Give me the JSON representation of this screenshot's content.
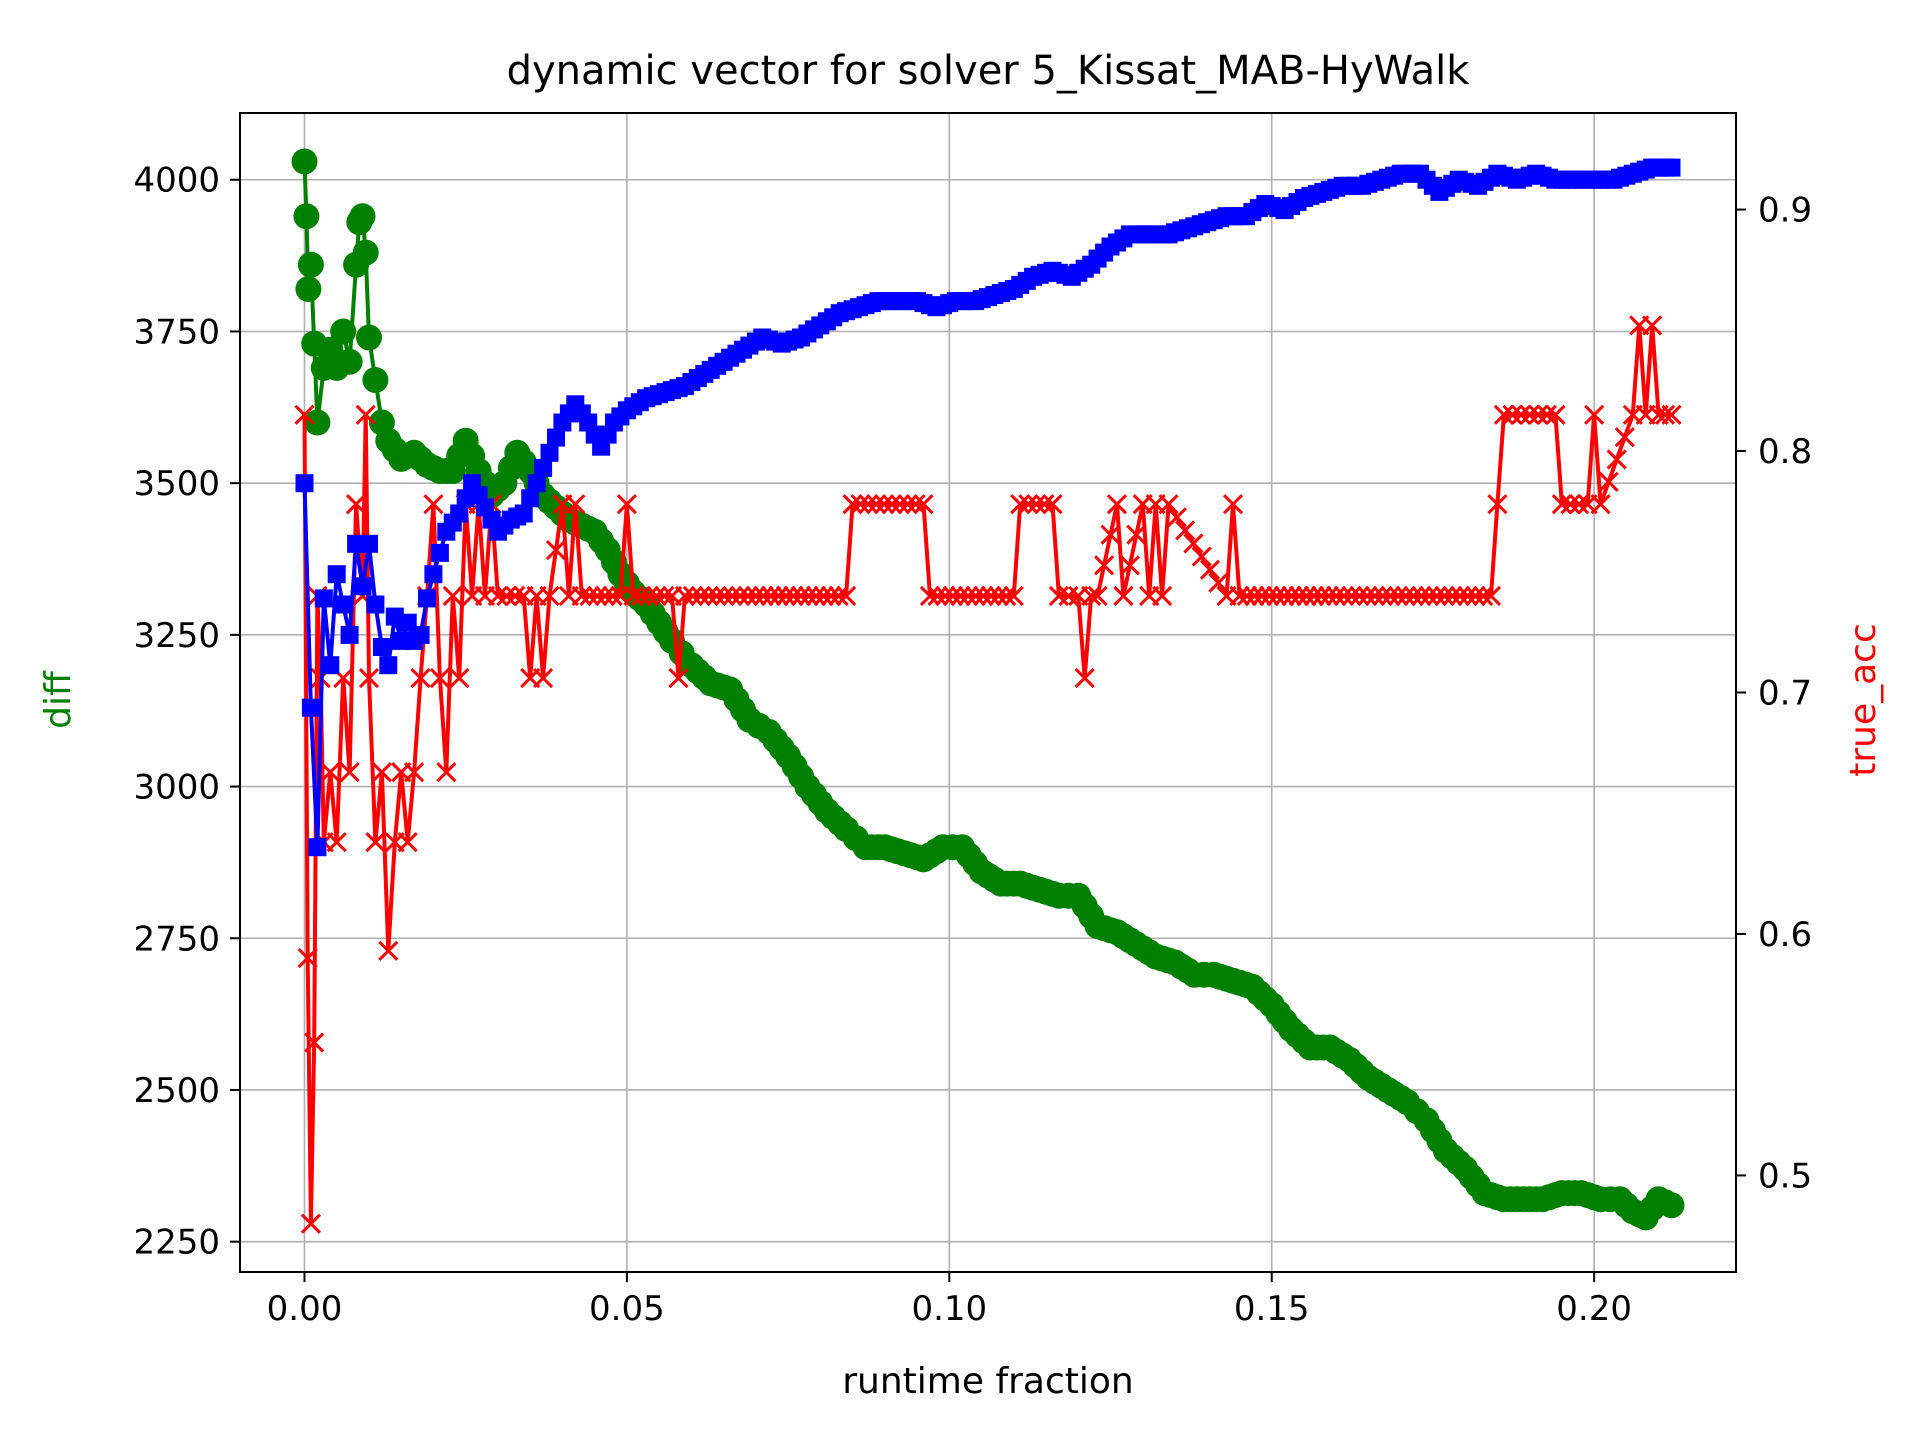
{
  "chart_data": {
    "type": "line",
    "title": "dynamic vector for solver 5_Kissat_MAB-HyWalk",
    "xlabel": "runtime fraction",
    "ylabel_left": "diff",
    "ylabel_right": "true_acc",
    "xlim": [
      -0.01,
      0.222
    ],
    "ylim_left": [
      2200,
      4110
    ],
    "ylim_right": [
      0.46,
      0.94
    ],
    "xticks": [
      0.0,
      0.05,
      0.1,
      0.15,
      0.2
    ],
    "xtick_labels": [
      "0.00",
      "0.05",
      "0.10",
      "0.15",
      "0.20"
    ],
    "yticks_left": [
      2250,
      2500,
      2750,
      3000,
      3250,
      3500,
      3750,
      4000
    ],
    "yticks_left_labels": [
      "2250",
      "2500",
      "2750",
      "3000",
      "3250",
      "3500",
      "3750",
      "4000"
    ],
    "yticks_right": [
      0.5,
      0.6,
      0.7,
      0.8,
      0.9
    ],
    "yticks_right_labels": [
      "0.5",
      "0.6",
      "0.7",
      "0.8",
      "0.9"
    ],
    "grid": true,
    "colors": {
      "diff": "#008000",
      "true_acc": "#ff0000",
      "blue_series": "#0000ff",
      "left_label": "#008000",
      "right_label": "#ff0000",
      "grid": "#b0b0b0"
    },
    "series": [
      {
        "axis": "left",
        "marker": "circle",
        "color": "#008000",
        "x": [
          0.0,
          0.0003,
          0.0006,
          0.001,
          0.0015,
          0.002,
          0.003,
          0.004,
          0.005,
          0.006,
          0.007,
          0.008,
          0.0085,
          0.009,
          0.0095,
          0.01,
          0.011,
          0.012,
          0.013,
          0.015,
          0.017,
          0.019,
          0.021,
          0.023,
          0.025,
          0.027,
          0.029,
          0.031,
          0.033,
          0.035,
          0.037,
          0.039,
          0.041,
          0.043,
          0.045,
          0.047,
          0.049,
          0.051,
          0.053,
          0.055,
          0.057,
          0.06,
          0.063,
          0.066,
          0.069,
          0.072,
          0.075,
          0.078,
          0.081,
          0.084,
          0.087,
          0.09,
          0.093,
          0.096,
          0.099,
          0.102,
          0.105,
          0.108,
          0.111,
          0.114,
          0.117,
          0.12,
          0.123,
          0.126,
          0.129,
          0.132,
          0.135,
          0.138,
          0.141,
          0.144,
          0.147,
          0.15,
          0.153,
          0.156,
          0.159,
          0.162,
          0.165,
          0.168,
          0.171,
          0.174,
          0.177,
          0.18,
          0.183,
          0.186,
          0.189,
          0.192,
          0.195,
          0.198,
          0.201,
          0.204,
          0.206,
          0.208,
          0.21,
          0.212
        ],
        "values": [
          4030,
          3940,
          3820,
          3860,
          3730,
          3600,
          3690,
          3720,
          3690,
          3750,
          3700,
          3860,
          3930,
          3940,
          3880,
          3740,
          3670,
          3600,
          3570,
          3540,
          3550,
          3530,
          3520,
          3520,
          3570,
          3520,
          3480,
          3500,
          3550,
          3520,
          3480,
          3460,
          3440,
          3430,
          3420,
          3390,
          3350,
          3320,
          3300,
          3270,
          3240,
          3200,
          3170,
          3160,
          3110,
          3090,
          3050,
          3000,
          2960,
          2930,
          2900,
          2900,
          2890,
          2880,
          2900,
          2900,
          2860,
          2840,
          2840,
          2830,
          2820,
          2820,
          2770,
          2760,
          2740,
          2720,
          2710,
          2690,
          2690,
          2680,
          2670,
          2640,
          2600,
          2570,
          2570,
          2550,
          2520,
          2500,
          2480,
          2450,
          2400,
          2370,
          2330,
          2320,
          2320,
          2320,
          2330,
          2330,
          2320,
          2320,
          2300,
          2290,
          2320,
          2310
        ]
      },
      {
        "axis": "right",
        "marker": "x",
        "color": "#ff0000",
        "x": [
          0.0,
          0.0005,
          0.001,
          0.0015,
          0.002,
          0.0025,
          0.003,
          0.004,
          0.005,
          0.006,
          0.007,
          0.008,
          0.009,
          0.0095,
          0.01,
          0.011,
          0.012,
          0.013,
          0.014,
          0.015,
          0.016,
          0.017,
          0.018,
          0.019,
          0.02,
          0.021,
          0.022,
          0.023,
          0.024,
          0.025,
          0.026,
          0.027,
          0.028,
          0.029,
          0.03,
          0.034,
          0.035,
          0.036,
          0.037,
          0.038,
          0.04,
          0.041,
          0.042,
          0.043,
          0.049,
          0.05,
          0.051,
          0.057,
          0.058,
          0.059,
          0.07,
          0.084,
          0.085,
          0.096,
          0.097,
          0.11,
          0.111,
          0.116,
          0.117,
          0.12,
          0.121,
          0.122,
          0.123,
          0.126,
          0.127,
          0.13,
          0.131,
          0.132,
          0.133,
          0.134,
          0.143,
          0.144,
          0.145,
          0.16,
          0.184,
          0.185,
          0.186,
          0.19,
          0.194,
          0.195,
          0.199,
          0.2,
          0.201,
          0.206,
          0.207,
          0.208,
          0.209,
          0.21,
          0.212
        ],
        "values": [
          0.815,
          0.59,
          0.48,
          0.555,
          0.74,
          0.706,
          0.638,
          0.667,
          0.638,
          0.706,
          0.667,
          0.778,
          0.74,
          0.815,
          0.706,
          0.638,
          0.667,
          0.593,
          0.638,
          0.667,
          0.638,
          0.667,
          0.706,
          0.74,
          0.778,
          0.706,
          0.667,
          0.74,
          0.706,
          0.778,
          0.74,
          0.778,
          0.74,
          0.778,
          0.74,
          0.74,
          0.706,
          0.74,
          0.706,
          0.74,
          0.778,
          0.74,
          0.778,
          0.74,
          0.74,
          0.778,
          0.74,
          0.74,
          0.706,
          0.74,
          0.74,
          0.74,
          0.778,
          0.778,
          0.74,
          0.74,
          0.778,
          0.778,
          0.74,
          0.74,
          0.706,
          0.74,
          0.74,
          0.778,
          0.74,
          0.778,
          0.74,
          0.778,
          0.74,
          0.778,
          0.74,
          0.778,
          0.74,
          0.74,
          0.74,
          0.778,
          0.815,
          0.815,
          0.815,
          0.778,
          0.778,
          0.815,
          0.778,
          0.815,
          0.852,
          0.815,
          0.852,
          0.815,
          0.815
        ]
      },
      {
        "axis": "left",
        "marker": "square",
        "color": "#0000ff",
        "x": [
          0.0,
          0.001,
          0.002,
          0.003,
          0.004,
          0.005,
          0.006,
          0.007,
          0.008,
          0.009,
          0.01,
          0.011,
          0.012,
          0.013,
          0.014,
          0.015,
          0.016,
          0.017,
          0.018,
          0.019,
          0.02,
          0.022,
          0.024,
          0.026,
          0.028,
          0.03,
          0.032,
          0.034,
          0.036,
          0.038,
          0.04,
          0.042,
          0.044,
          0.046,
          0.048,
          0.05,
          0.053,
          0.056,
          0.059,
          0.062,
          0.065,
          0.068,
          0.071,
          0.074,
          0.077,
          0.08,
          0.083,
          0.086,
          0.089,
          0.092,
          0.095,
          0.098,
          0.101,
          0.104,
          0.107,
          0.11,
          0.113,
          0.116,
          0.119,
          0.122,
          0.125,
          0.128,
          0.131,
          0.134,
          0.137,
          0.14,
          0.143,
          0.146,
          0.149,
          0.152,
          0.155,
          0.158,
          0.161,
          0.164,
          0.167,
          0.17,
          0.173,
          0.176,
          0.179,
          0.182,
          0.185,
          0.188,
          0.191,
          0.194,
          0.197,
          0.2,
          0.203,
          0.206,
          0.209,
          0.212
        ],
        "values": [
          3500,
          3130,
          2900,
          3310,
          3200,
          3350,
          3300,
          3250,
          3400,
          3330,
          3400,
          3300,
          3230,
          3200,
          3280,
          3240,
          3270,
          3240,
          3250,
          3310,
          3350,
          3420,
          3450,
          3500,
          3460,
          3420,
          3440,
          3450,
          3500,
          3550,
          3600,
          3630,
          3600,
          3560,
          3600,
          3620,
          3640,
          3650,
          3660,
          3680,
          3700,
          3720,
          3740,
          3730,
          3740,
          3760,
          3780,
          3790,
          3800,
          3800,
          3800,
          3790,
          3800,
          3800,
          3810,
          3820,
          3840,
          3850,
          3840,
          3860,
          3890,
          3910,
          3910,
          3910,
          3920,
          3930,
          3940,
          3940,
          3960,
          3950,
          3970,
          3980,
          3990,
          3990,
          4000,
          4010,
          4010,
          3980,
          4000,
          3990,
          4010,
          4000,
          4010,
          4000,
          4000,
          4000,
          4000,
          4010,
          4020,
          4020
        ]
      }
    ]
  }
}
